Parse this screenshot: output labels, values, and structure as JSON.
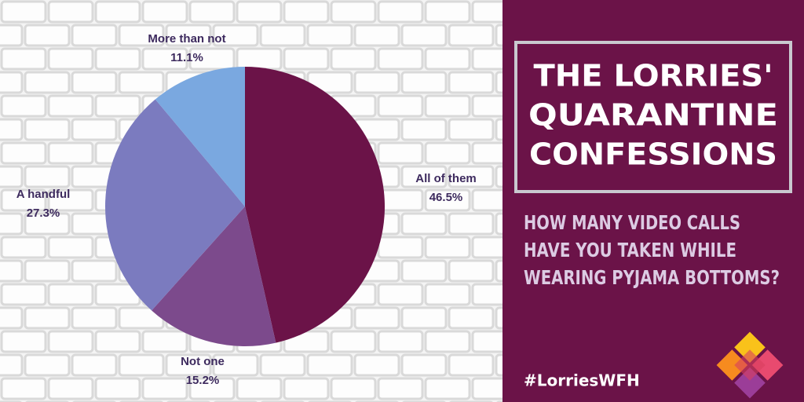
{
  "chart_data": {
    "type": "pie",
    "title": [
      "THE LORRIES'",
      "QUARANTINE",
      "CONFESSIONS"
    ],
    "subtitle": [
      "HOW MANY VIDEO CALLS",
      "HAVE YOU TAKEN WHILE",
      "WEARING PYJAMA BOTTOMS?"
    ],
    "categories": [
      "All of them",
      "Not one",
      "A handful",
      "More than not"
    ],
    "values": [
      46.5,
      15.2,
      27.3,
      11.1
    ],
    "value_labels": [
      "46.5%",
      "15.2%",
      "27.3%",
      "11.1%"
    ],
    "colors": [
      "#6b1348",
      "#7c4a8c",
      "#7b7bbf",
      "#7aa8e0"
    ]
  },
  "footer": {
    "hashtag": "#LorriesWFH"
  }
}
